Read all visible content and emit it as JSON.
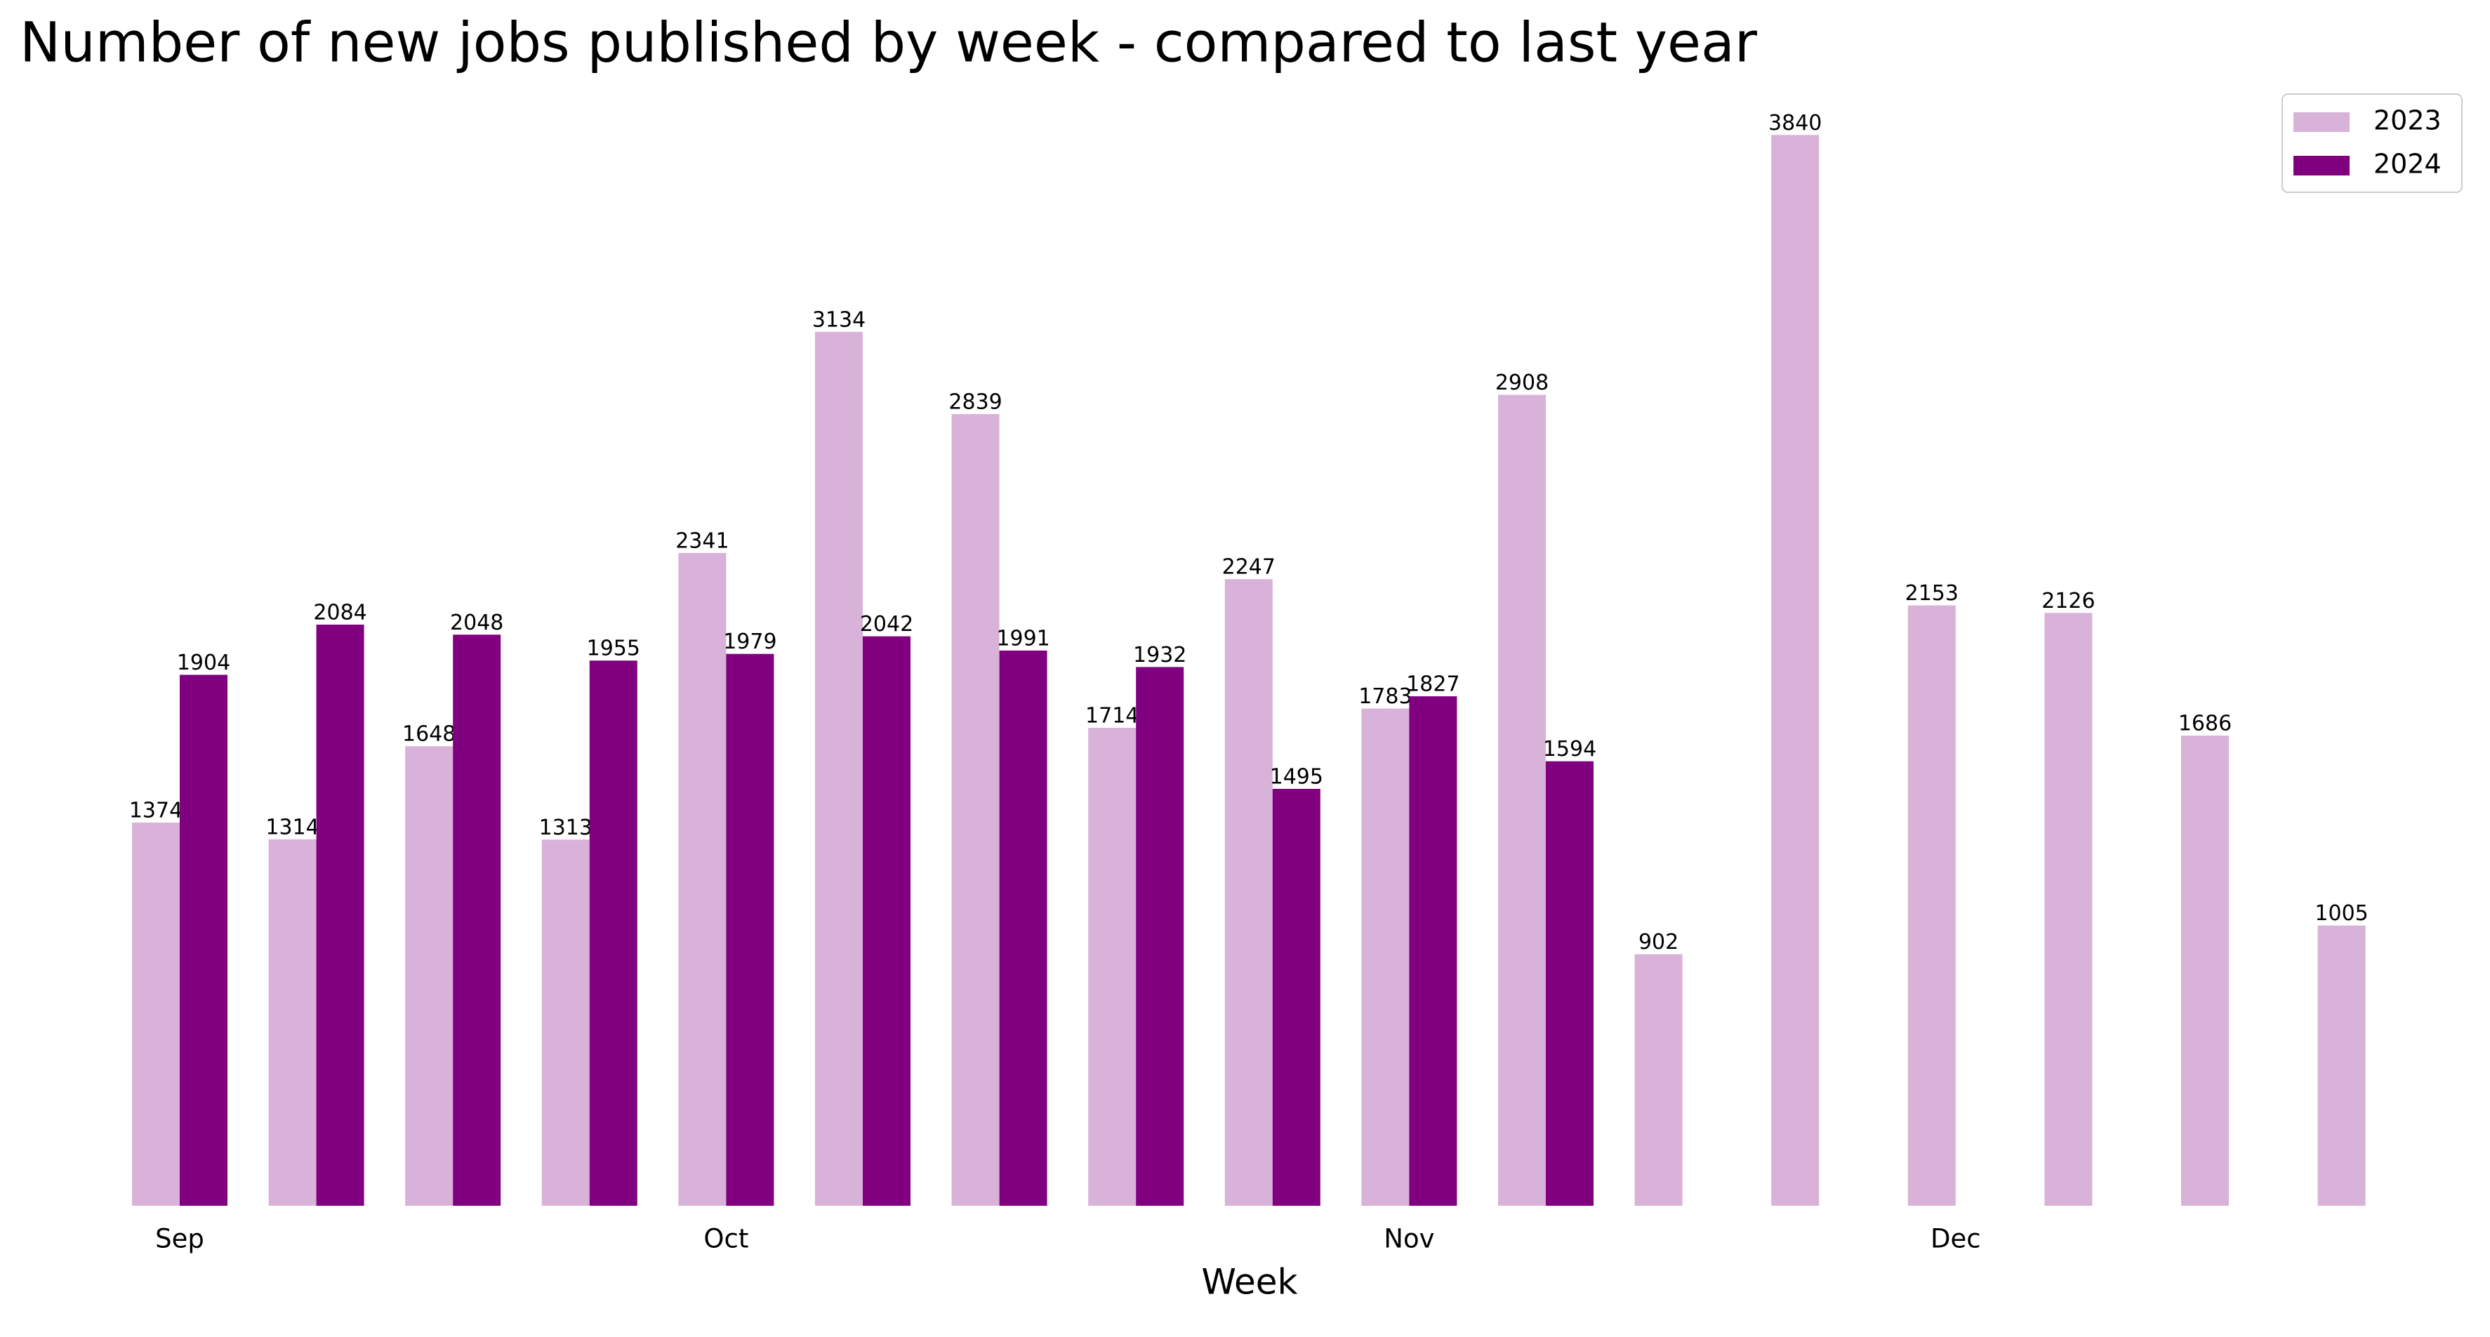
{
  "chart_data": {
    "type": "bar",
    "title": "Number of new jobs published by week - compared to last year",
    "x_label": "Week",
    "categories": [
      "Sep",
      null,
      null,
      null,
      "Oct",
      null,
      null,
      null,
      null,
      "Nov",
      null,
      null,
      null,
      "Dec",
      null,
      null,
      null
    ],
    "series": [
      {
        "name": "2023",
        "color": "#d8b2d8",
        "values": [
          1374,
          1314,
          1648,
          1313,
          2341,
          3134,
          2839,
          1714,
          2247,
          1783,
          2908,
          902,
          3840,
          2153,
          2126,
          1686,
          1005
        ]
      },
      {
        "name": "2024",
        "color": "#800080",
        "values": [
          1904,
          2084,
          2048,
          1955,
          1979,
          2042,
          1991,
          1932,
          1495,
          1827,
          1594,
          null,
          null,
          null,
          null,
          null,
          null
        ]
      }
    ],
    "ylim": [
      0,
      4032
    ],
    "legend": "upper right"
  }
}
